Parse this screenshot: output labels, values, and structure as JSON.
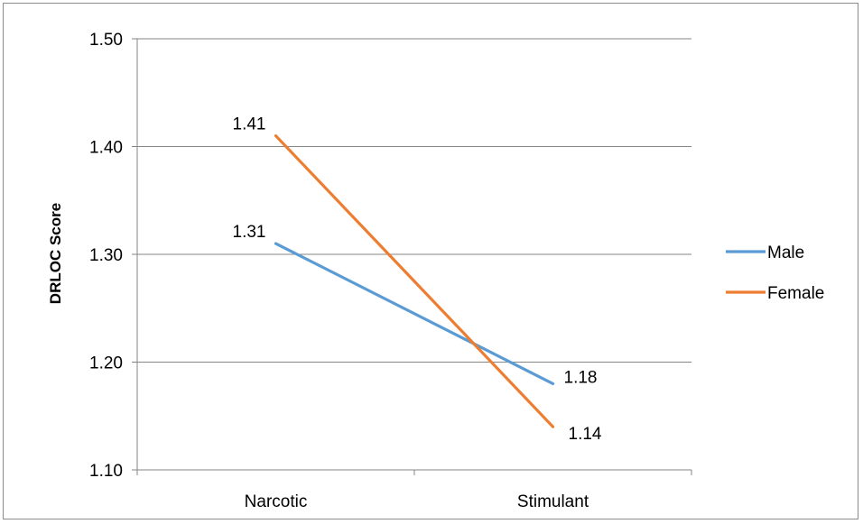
{
  "chart_data": {
    "type": "line",
    "title": "",
    "xlabel": "",
    "ylabel": "DRLOC Score",
    "categories": [
      "Narcotic",
      "Stimulant"
    ],
    "ylim": [
      1.1,
      1.5
    ],
    "yticks": [
      "1.10",
      "1.20",
      "1.30",
      "1.40",
      "1.50"
    ],
    "grid": true,
    "legend_position": "right",
    "series": [
      {
        "name": "Male",
        "values": [
          1.31,
          1.18
        ],
        "labels": [
          "1.31",
          "1.18"
        ],
        "color": "#5b9bd5"
      },
      {
        "name": "Female",
        "values": [
          1.41,
          1.14
        ],
        "labels": [
          "1.41",
          "1.14"
        ],
        "color": "#ed7d31"
      }
    ]
  }
}
